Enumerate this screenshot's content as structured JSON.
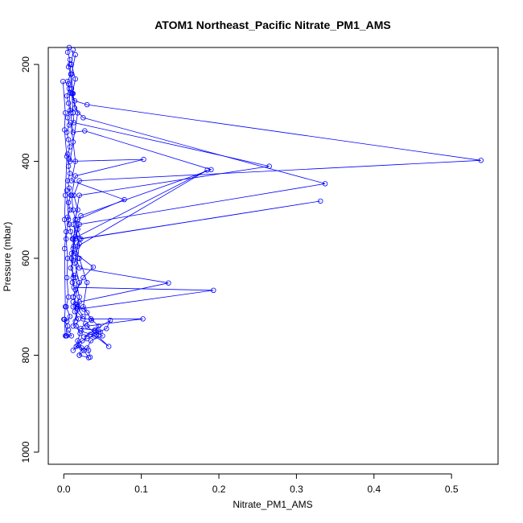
{
  "chart_data": {
    "type": "line",
    "title": "ATOM1 Northeast_Pacific Nitrate_PM1_AMS",
    "xlabel": "Nitrate_PM1_AMS",
    "ylabel": "Pressure (mbar)",
    "xlim": [
      -0.02,
      0.56
    ],
    "ylim": [
      1025,
      165
    ],
    "y_reversed": true,
    "grid": false,
    "x_ticks": [
      "0.0",
      "0.1",
      "0.2",
      "0.3",
      "0.4",
      "0.5"
    ],
    "x_tick_values": [
      0,
      0.1,
      0.2,
      0.3,
      0.4,
      0.5
    ],
    "y_ticks": [
      "200",
      "400",
      "600",
      "800",
      "1000"
    ],
    "y_tick_values": [
      200,
      400,
      600,
      800,
      1000
    ],
    "color": "#0000ff",
    "series": [
      {
        "values": [
          [
            0.007,
            165
          ],
          [
            0.005,
            175
          ],
          [
            0.008,
            190
          ],
          [
            0.006,
            205
          ],
          [
            0.009,
            220
          ],
          [
            0.005,
            235
          ],
          [
            0.007,
            250
          ],
          [
            0.004,
            265
          ],
          [
            0.006,
            280
          ],
          [
            0.008,
            295
          ],
          [
            0.005,
            310
          ],
          [
            0.007,
            325
          ],
          [
            0.004,
            340
          ],
          [
            0.006,
            355
          ],
          [
            0.008,
            370
          ],
          [
            0.005,
            385
          ],
          [
            0.007,
            395
          ],
          [
            0.006,
            410
          ],
          [
            0.008,
            425
          ],
          [
            0.005,
            440
          ],
          [
            0.007,
            455
          ],
          [
            0.009,
            470
          ],
          [
            0.006,
            485
          ],
          [
            0.008,
            500
          ],
          [
            0.005,
            515
          ],
          [
            0.007,
            530
          ],
          [
            0.009,
            545
          ],
          [
            0.011,
            560
          ],
          [
            0.013,
            575
          ],
          [
            0.01,
            590
          ],
          [
            0.012,
            605
          ],
          [
            0.009,
            620
          ],
          [
            0.013,
            635
          ],
          [
            0.011,
            650
          ],
          [
            0.015,
            665
          ],
          [
            0.012,
            680
          ],
          [
            0.017,
            695
          ],
          [
            0.014,
            710
          ],
          [
            0.019,
            725
          ],
          [
            0.016,
            740
          ],
          [
            0.021,
            755
          ],
          [
            0.018,
            770
          ],
          [
            0.023,
            785
          ],
          [
            0.02,
            800
          ]
        ]
      },
      {
        "values": [
          [
            0.012,
            170
          ],
          [
            0.01,
            200
          ],
          [
            0.015,
            230
          ],
          [
            0.011,
            260
          ],
          [
            0.014,
            275
          ],
          [
            0.03,
            283
          ],
          [
            0.538,
            398
          ],
          [
            0.02,
            440
          ],
          [
            0.013,
            470
          ],
          [
            0.018,
            500
          ],
          [
            0.012,
            530
          ],
          [
            0.02,
            570
          ],
          [
            0.018,
            600
          ],
          [
            0.015,
            640
          ],
          [
            0.02,
            680
          ],
          [
            0.017,
            700
          ],
          [
            0.025,
            720
          ]
        ]
      },
      {
        "values": [
          [
            0.015,
            180
          ],
          [
            0.01,
            220
          ],
          [
            0.012,
            260
          ],
          [
            0.014,
            290
          ],
          [
            0.025,
            310
          ],
          [
            0.337,
            446
          ],
          [
            0.02,
            530
          ],
          [
            0.015,
            560
          ],
          [
            0.01,
            600
          ],
          [
            0.012,
            640
          ]
        ]
      },
      {
        "values": [
          [
            0.008,
            200
          ],
          [
            0.01,
            250
          ],
          [
            0.012,
            300
          ],
          [
            0.013,
            320
          ],
          [
            0.265,
            410
          ],
          [
            0.02,
            470
          ],
          [
            0.015,
            520
          ],
          [
            0.012,
            580
          ],
          [
            0.02,
            620
          ],
          [
            0.135,
            651
          ],
          [
            0.02,
            690
          ],
          [
            0.015,
            730
          ]
        ]
      },
      {
        "values": [
          [
            0.006,
            240
          ],
          [
            0.009,
            300
          ],
          [
            0.012,
            340
          ],
          [
            0.027,
            337
          ],
          [
            0.19,
            417
          ],
          [
            0.022,
            512
          ],
          [
            0.015,
            555
          ],
          [
            0.01,
            600
          ],
          [
            0.013,
            660
          ],
          [
            0.193,
            666
          ],
          [
            0.018,
            705
          ],
          [
            0.012,
            740
          ]
        ]
      },
      {
        "values": [
          [
            0.01,
            260
          ],
          [
            0.018,
            300
          ],
          [
            0.012,
            360
          ],
          [
            0.008,
            400
          ],
          [
            0.103,
            396
          ],
          [
            0.015,
            430
          ],
          [
            0.01,
            470
          ],
          [
            0.012,
            500
          ],
          [
            0.018,
            540
          ],
          [
            0.022,
            560
          ],
          [
            0.331,
            482
          ],
          [
            0.02,
            560
          ],
          [
            0.015,
            590
          ],
          [
            0.038,
            618
          ],
          [
            0.025,
            640
          ],
          [
            0.012,
            680
          ]
        ]
      },
      {
        "values": [
          [
            0.009,
            320
          ],
          [
            0.015,
            400
          ],
          [
            0.01,
            440
          ],
          [
            0.078,
            479
          ],
          [
            0.018,
            520
          ],
          [
            0.012,
            560
          ],
          [
            0.185,
            418
          ],
          [
            0.018,
            575
          ],
          [
            0.014,
            610
          ],
          [
            0.02,
            650
          ],
          [
            0.012,
            700
          ],
          [
            0.025,
            725
          ],
          [
            0.102,
            725
          ],
          [
            0.03,
            740
          ],
          [
            0.058,
            782
          ],
          [
            0.04,
            760
          ],
          [
            0.022,
            750
          ]
        ]
      },
      {
        "values": [
          [
            0.004,
            460
          ],
          [
            0.006,
            520
          ],
          [
            0.003,
            560
          ],
          [
            0.005,
            600
          ],
          [
            0.004,
            640
          ],
          [
            0.006,
            680
          ],
          [
            0.003,
            700
          ],
          [
            0.008,
            720
          ],
          [
            0.004,
            730
          ],
          [
            0.0,
            726
          ],
          [
            0.005,
            740
          ],
          [
            0.003,
            760
          ],
          [
            0.01,
            760
          ],
          [
            0.006,
            748
          ]
        ]
      },
      {
        "values": [
          [
            0.02,
            600
          ],
          [
            0.03,
            650
          ],
          [
            0.025,
            700
          ],
          [
            0.035,
            725
          ],
          [
            0.045,
            740
          ],
          [
            0.04,
            750
          ],
          [
            0.05,
            760
          ],
          [
            0.035,
            770
          ],
          [
            0.03,
            785
          ],
          [
            0.02,
            800
          ],
          [
            0.032,
            805
          ],
          [
            0.026,
            790
          ],
          [
            0.018,
            780
          ],
          [
            0.012,
            790
          ]
        ]
      },
      {
        "values": [
          [
            0.012,
            690
          ],
          [
            0.018,
            700
          ],
          [
            0.026,
            705
          ],
          [
            0.03,
            712
          ],
          [
            0.036,
            728
          ],
          [
            0.028,
            735
          ],
          [
            0.022,
            745
          ],
          [
            0.04,
            748
          ],
          [
            0.047,
            752
          ],
          [
            0.034,
            757
          ],
          [
            0.026,
            762
          ],
          [
            0.06,
            728
          ],
          [
            0.055,
            745
          ],
          [
            0.045,
            752
          ],
          [
            0.042,
            758
          ],
          [
            0.03,
            766
          ],
          [
            0.024,
            770
          ],
          [
            0.02,
            775
          ],
          [
            0.016,
            782
          ],
          [
            0.032,
            790
          ],
          [
            0.034,
            804
          ]
        ]
      },
      {
        "values": [
          [
            -0.001,
            235
          ],
          [
            0.002,
            300
          ],
          [
            0.001,
            335
          ],
          [
            0.004,
            390
          ],
          [
            0.002,
            470
          ],
          [
            0.001,
            520
          ],
          [
            0.003,
            545
          ],
          [
            0.001,
            580
          ],
          [
            0.002,
            700
          ],
          [
            0.001,
            726
          ],
          [
            0.002,
            760
          ],
          [
            0.004,
            760
          ]
        ]
      }
    ]
  }
}
